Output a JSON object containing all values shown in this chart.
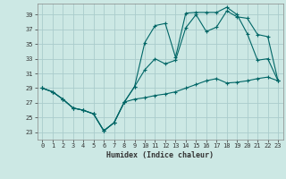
{
  "xlabel": "Humidex (Indice chaleur)",
  "bg_color": "#cce8e4",
  "grid_color": "#aacccc",
  "line_color": "#006666",
  "xlim": [
    -0.5,
    23.5
  ],
  "ylim": [
    22.0,
    40.5
  ],
  "xticks": [
    0,
    1,
    2,
    3,
    4,
    5,
    6,
    7,
    8,
    9,
    10,
    11,
    12,
    13,
    14,
    15,
    16,
    17,
    18,
    19,
    20,
    21,
    22,
    23
  ],
  "yticks": [
    23,
    25,
    27,
    29,
    31,
    33,
    35,
    37,
    39
  ],
  "line1_x": [
    0,
    1,
    2,
    3,
    4,
    5,
    6,
    7,
    8,
    9,
    10,
    11,
    12,
    13,
    14,
    15,
    16,
    17,
    18,
    19,
    20,
    21,
    22,
    23
  ],
  "line1_y": [
    29,
    28.5,
    27.5,
    26.3,
    26.0,
    25.5,
    23.2,
    24.3,
    27.1,
    29.2,
    35.2,
    37.5,
    37.8,
    33.2,
    39.2,
    39.3,
    39.3,
    39.3,
    40.0,
    39.0,
    36.4,
    32.8,
    33.0,
    30.0
  ],
  "line2_x": [
    0,
    1,
    2,
    3,
    4,
    5,
    6,
    7,
    8,
    9,
    10,
    11,
    12,
    13,
    14,
    15,
    16,
    17,
    18,
    19,
    20,
    21,
    22,
    23
  ],
  "line2_y": [
    29,
    28.5,
    27.5,
    26.3,
    26.0,
    25.5,
    23.2,
    24.3,
    27.1,
    29.2,
    31.5,
    33.0,
    32.3,
    32.8,
    37.2,
    39.0,
    36.7,
    37.3,
    39.5,
    38.7,
    38.5,
    36.3,
    36.0,
    30.0
  ],
  "line3_x": [
    0,
    1,
    2,
    3,
    4,
    5,
    6,
    7,
    8,
    9,
    10,
    11,
    12,
    13,
    14,
    15,
    16,
    17,
    18,
    19,
    20,
    21,
    22,
    23
  ],
  "line3_y": [
    29,
    28.5,
    27.5,
    26.3,
    26.0,
    25.5,
    23.2,
    24.3,
    27.1,
    27.5,
    27.7,
    28.0,
    28.2,
    28.5,
    29.0,
    29.5,
    30.0,
    30.3,
    29.7,
    29.8,
    30.0,
    30.3,
    30.5,
    30.0
  ]
}
